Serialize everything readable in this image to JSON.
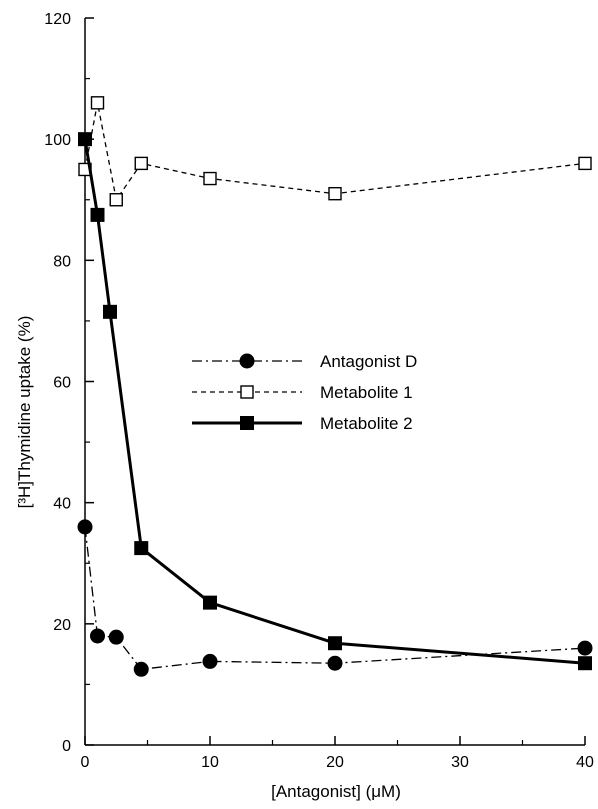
{
  "chart_data": {
    "type": "line",
    "title": "",
    "xlabel": "[Antagonist] (μM)",
    "ylabel": "[³H]Thymidine uptake (%)",
    "xlim": [
      0,
      40
    ],
    "ylim": [
      0,
      120
    ],
    "xticks": [
      "0",
      "10",
      "20",
      "30",
      "40"
    ],
    "yticks": [
      "0",
      "20",
      "40",
      "60",
      "80",
      "100",
      "120"
    ],
    "grid": false,
    "legend_position": "center-right",
    "series": [
      {
        "name": "Antagonist D",
        "marker": "filled-circle",
        "line": "dash-dot",
        "x": [
          0,
          1,
          2.5,
          4.5,
          10,
          20,
          40
        ],
        "y": [
          36,
          18,
          17.8,
          12.5,
          13.8,
          13.5,
          16
        ]
      },
      {
        "name": "Metabolite 1",
        "marker": "open-square",
        "line": "dashed",
        "x": [
          0,
          1,
          2.5,
          4.5,
          10,
          20,
          40
        ],
        "y": [
          95,
          106,
          90,
          96,
          93.5,
          91,
          96
        ]
      },
      {
        "name": "Metabolite 2",
        "marker": "filled-square",
        "line": "solid-thick",
        "x": [
          0,
          1,
          2,
          4.5,
          10,
          20,
          40
        ],
        "y": [
          100,
          87.5,
          71.5,
          32.5,
          23.5,
          16.8,
          13.5
        ]
      }
    ]
  }
}
